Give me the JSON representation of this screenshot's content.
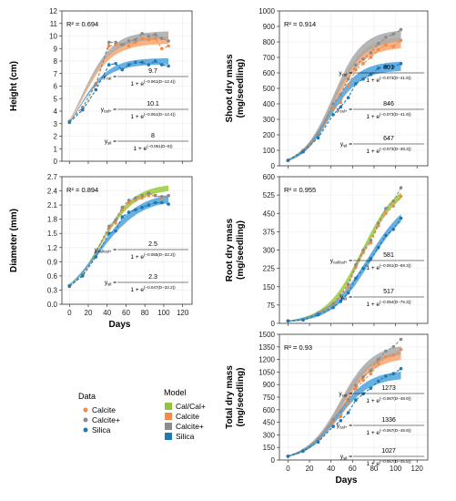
{
  "colors": {
    "calcite": "#F58A42",
    "calcite_plus": "#8C8C8C",
    "silica": "#1F78B4",
    "cal_cal_plus": "#8DC63F",
    "band_calcite": "#F9A56B",
    "band_calcite_plus": "#A9A9A9",
    "band_silica": "#4BA3DC",
    "band_cal_cal_plus": "#9BCB3C"
  },
  "legend": {
    "data_title": "Data",
    "data_items": [
      {
        "label": "Calcite",
        "color": "#F58A42"
      },
      {
        "label": "Calcite+",
        "color": "#8C8C8C"
      },
      {
        "label": "Silica",
        "color": "#1F78B4"
      }
    ],
    "model_title": "Model",
    "model_items": [
      {
        "label": "Cal/Cal+",
        "color": "#8DC63F"
      },
      {
        "label": "Calcite",
        "color": "#F58A42"
      },
      {
        "label": "Calcite+",
        "color": "#8C8C8C"
      },
      {
        "label": "Silica",
        "color": "#1F78B4"
      }
    ]
  },
  "chart_data": [
    {
      "id": "height",
      "type": "line",
      "ylabel": "Height (cm)",
      "xlabel": "",
      "ylim": [
        0,
        12
      ],
      "yticks": [
        0,
        1,
        2,
        3,
        4,
        5,
        6,
        7,
        8,
        9,
        10,
        11,
        12
      ],
      "ytick_labels": [
        "0",
        "1",
        "2",
        "3",
        "4",
        "5",
        "6",
        "7",
        "8",
        "9",
        "10",
        "11",
        "12"
      ],
      "xlim": [
        -8,
        130
      ],
      "xticks": [
        0,
        20,
        40,
        60,
        80,
        100,
        120
      ],
      "x": [
        0,
        14,
        28,
        42,
        49,
        56,
        63,
        70,
        77,
        84,
        91,
        98,
        105
      ],
      "r2": "R² = 0.694",
      "series": [
        {
          "name": "Calcite",
          "data": [
            3.2,
            4.3,
            6.2,
            9.2,
            9.3,
            9.3,
            9.2,
            9.5,
            9.8,
            9.7,
            9.8,
            9.0,
            9.2
          ]
        },
        {
          "name": "Calcite+",
          "data": [
            3.2,
            4.3,
            6.1,
            9.5,
            9.5,
            9.3,
            9.6,
            9.7,
            10.2,
            10.0,
            10.1,
            9.8,
            9.6
          ]
        },
        {
          "name": "Silica",
          "data": [
            3.1,
            4.1,
            5.7,
            7.7,
            7.8,
            7.3,
            7.7,
            7.9,
            7.9,
            7.7,
            8.0,
            7.7,
            7.6
          ]
        }
      ],
      "models": [
        {
          "name": "Calcite",
          "asym": 9.7,
          "k": 0.061,
          "d0": 12.4,
          "band": 0.3
        },
        {
          "name": "Calcite+",
          "asym": 10.1,
          "k": 0.061,
          "d0": 12.4,
          "band": 0.3
        },
        {
          "name": "Silica",
          "asym": 8,
          "k": 0.061,
          "d0": 8,
          "band": 0.25
        }
      ],
      "equations": [
        {
          "num": "9.7",
          "lhs": "y_cal =",
          "den": "1 + e^(−0.061(D−12.4))"
        },
        {
          "num": "10.1",
          "lhs": "y_cal+ =",
          "den": "1 + e^(−0.061(D−12.4))"
        },
        {
          "num": "8",
          "lhs": "y_sil =",
          "den": "1 + e^(−0.061(D−8))"
        }
      ]
    },
    {
      "id": "shoot",
      "type": "line",
      "ylabel": "Shoot dry mass (mg/seedling)",
      "xlabel": "",
      "ylim": [
        0,
        1000
      ],
      "yticks": [
        0,
        100,
        200,
        300,
        400,
        500,
        600,
        700,
        800,
        900,
        1000
      ],
      "ytick_labels": [
        "0",
        "100",
        "200",
        "300",
        "400",
        "500",
        "600",
        "700",
        "800",
        "900",
        "1000"
      ],
      "xlim": [
        -8,
        130
      ],
      "xticks": [
        0,
        20,
        40,
        60,
        80,
        100,
        120
      ],
      "x": [
        0,
        14,
        28,
        42,
        49,
        56,
        63,
        70,
        77,
        84,
        91,
        98,
        105
      ],
      "r2": "R² = 0.914",
      "series": [
        {
          "name": "Calcite",
          "data": [
            35,
            95,
            190,
            370,
            410,
            520,
            620,
            660,
            700,
            750,
            780,
            770,
            810
          ]
        },
        {
          "name": "Calcite+",
          "data": [
            35,
            100,
            200,
            400,
            460,
            560,
            650,
            690,
            730,
            790,
            830,
            850,
            880
          ]
        },
        {
          "name": "Silica",
          "data": [
            35,
            90,
            180,
            330,
            380,
            440,
            530,
            560,
            590,
            630,
            640,
            640,
            660
          ]
        }
      ],
      "models": [
        {
          "name": "Calcite",
          "asym": 801,
          "k": 0.073,
          "d0": 41.9,
          "band": 35
        },
        {
          "name": "Calcite+",
          "asym": 846,
          "k": 0.073,
          "d0": 41.9,
          "band": 35
        },
        {
          "name": "Silica",
          "asym": 647,
          "k": 0.073,
          "d0": 38.3,
          "band": 30
        }
      ],
      "equations": [
        {
          "num": "801",
          "lhs": "y_cal =",
          "den": "1 + e^(−0.073(D−41.9))"
        },
        {
          "num": "846",
          "lhs": "y_cal+ =",
          "den": "1 + e^(−0.073(D−41.9))"
        },
        {
          "num": "647",
          "lhs": "y_sil =",
          "den": "1 + e^(−0.073(D−38.3))"
        }
      ]
    },
    {
      "id": "diameter",
      "type": "line",
      "ylabel": "Diameter (mm)",
      "xlabel": "Days",
      "ylim": [
        0,
        2.7
      ],
      "yticks": [
        0,
        0.3,
        0.6,
        0.9,
        1.2,
        1.5,
        1.8,
        2.1,
        2.4,
        2.7
      ],
      "ytick_labels": [
        "0.0",
        "0.3",
        "0.6",
        "0.9",
        "1.2",
        "1.5",
        "1.8",
        "2.1",
        "2.4",
        "2.7"
      ],
      "xlim": [
        -8,
        130
      ],
      "xticks": [
        0,
        20,
        40,
        60,
        80,
        100,
        120
      ],
      "xtick_labels": [
        "0",
        "20",
        "40",
        "60",
        "80",
        "100",
        "120"
      ],
      "x": [
        0,
        14,
        28,
        42,
        49,
        56,
        63,
        70,
        77,
        84,
        91,
        98,
        105
      ],
      "r2": "R² = 0.894",
      "series": [
        {
          "name": "Calcite",
          "data": [
            0.4,
            0.62,
            1.1,
            1.6,
            1.72,
            2.0,
            2.15,
            2.2,
            2.25,
            2.3,
            2.3,
            2.25,
            2.3
          ]
        },
        {
          "name": "Calcite+",
          "data": [
            0.4,
            0.62,
            1.1,
            1.65,
            1.78,
            2.05,
            2.2,
            2.25,
            2.3,
            2.35,
            2.3,
            2.28,
            2.3
          ]
        },
        {
          "name": "Silica",
          "data": [
            0.38,
            0.6,
            1.0,
            1.5,
            1.55,
            1.85,
            1.95,
            2.0,
            2.05,
            2.1,
            2.15,
            2.15,
            2.12
          ]
        }
      ],
      "models": [
        {
          "name": "Cal/Cal+",
          "asym": 2.5,
          "k": 0.055,
          "d0": 32.2,
          "band": 0.06
        },
        {
          "name": "Silica",
          "asym": 2.3,
          "k": 0.047,
          "d0": 32.2,
          "band": 0.08
        }
      ],
      "equations": [
        {
          "num": "2.5",
          "lhs": "y_cal/cal+ =",
          "den": "1 + e^(−0.055(D−32.2))"
        },
        {
          "num": "2.3",
          "lhs": "y_sil =",
          "den": "1 + e^(−0.047(D−32.2))"
        }
      ]
    },
    {
      "id": "root",
      "type": "line",
      "ylabel": "Root dry mass (mg/seedling)",
      "xlabel": "",
      "ylim": [
        0,
        600
      ],
      "yticks": [
        0,
        75,
        150,
        225,
        300,
        375,
        450,
        525,
        600
      ],
      "ytick_labels": [
        "0",
        "75",
        "150",
        "225",
        "300",
        "375",
        "450",
        "525",
        "600"
      ],
      "xlim": [
        -8,
        130
      ],
      "xticks": [
        0,
        20,
        40,
        60,
        80,
        100,
        120
      ],
      "x": [
        0,
        14,
        28,
        42,
        49,
        56,
        63,
        70,
        77,
        84,
        91,
        98,
        105
      ],
      "r2": "R² = 0.955",
      "series": [
        {
          "name": "Calcite",
          "data": [
            10,
            15,
            40,
            75,
            110,
            150,
            230,
            290,
            330,
            400,
            450,
            480,
            520
          ]
        },
        {
          "name": "Calcite+",
          "data": [
            10,
            15,
            42,
            80,
            115,
            160,
            240,
            300,
            340,
            410,
            470,
            500,
            555
          ]
        },
        {
          "name": "Silica",
          "data": [
            10,
            14,
            35,
            65,
            90,
            125,
            185,
            225,
            265,
            310,
            360,
            385,
            430
          ]
        }
      ],
      "models": [
        {
          "name": "Cal/Cal+",
          "asym": 581,
          "k": 0.061,
          "d0": 69.3,
          "band": 14
        },
        {
          "name": "Silica",
          "asym": 517,
          "k": 0.054,
          "d0": 75.3,
          "band": 16
        }
      ],
      "equations": [
        {
          "num": "581",
          "lhs": "y_cal/cal+ =",
          "den": "1 + e^(−0.061(D−69.3))"
        },
        {
          "num": "517",
          "lhs": "y_sil =",
          "den": "1 + e^(−0.054(D−75.3))"
        }
      ]
    },
    {
      "id": "total",
      "type": "line",
      "ylabel": "Total dry mass (mg/seedling)",
      "xlabel": "Days",
      "ylim": [
        0,
        1500
      ],
      "yticks": [
        0,
        150,
        300,
        450,
        600,
        750,
        900,
        1050,
        1200,
        1350,
        1500
      ],
      "ytick_labels": [
        "0",
        "150",
        "300",
        "450",
        "600",
        "750",
        "900",
        "1050",
        "1200",
        "1350",
        "1500"
      ],
      "xlim": [
        -8,
        130
      ],
      "xticks": [
        0,
        20,
        40,
        60,
        80,
        100,
        120
      ],
      "xtick_labels": [
        "0",
        "20",
        "40",
        "60",
        "80",
        "100",
        "120"
      ],
      "x": [
        0,
        14,
        28,
        42,
        49,
        56,
        63,
        70,
        77,
        84,
        91,
        98,
        105
      ],
      "r2": "R² = 0.93",
      "series": [
        {
          "name": "Calcite",
          "data": [
            45,
            110,
            230,
            450,
            520,
            680,
            850,
            950,
            1030,
            1150,
            1230,
            1250,
            1320
          ]
        },
        {
          "name": "Calcite+",
          "data": [
            45,
            115,
            245,
            480,
            580,
            720,
            890,
            990,
            1070,
            1200,
            1300,
            1350,
            1440
          ]
        },
        {
          "name": "Silica",
          "data": [
            45,
            105,
            215,
            400,
            470,
            565,
            715,
            790,
            855,
            940,
            1000,
            1030,
            1090
          ]
        }
      ],
      "models": [
        {
          "name": "Calcite",
          "asym": 1273,
          "k": 0.067,
          "d0": 48.9,
          "band": 50
        },
        {
          "name": "Calcite+",
          "asym": 1336,
          "k": 0.067,
          "d0": 48.9,
          "band": 50
        },
        {
          "name": "Silica",
          "asym": 1027,
          "k": 0.067,
          "d0": 45.5,
          "band": 45
        }
      ],
      "equations": [
        {
          "num": "1273",
          "lhs": "y_cal =",
          "den": "1 + e^(−0.067(D−48.9))"
        },
        {
          "num": "1336",
          "lhs": "y_cal+ =",
          "den": "1 + e^(−0.067(D−48.9))"
        },
        {
          "num": "1027",
          "lhs": "y_sil =",
          "den": "1 + e^(−0.067(D−45.5))"
        }
      ]
    }
  ]
}
